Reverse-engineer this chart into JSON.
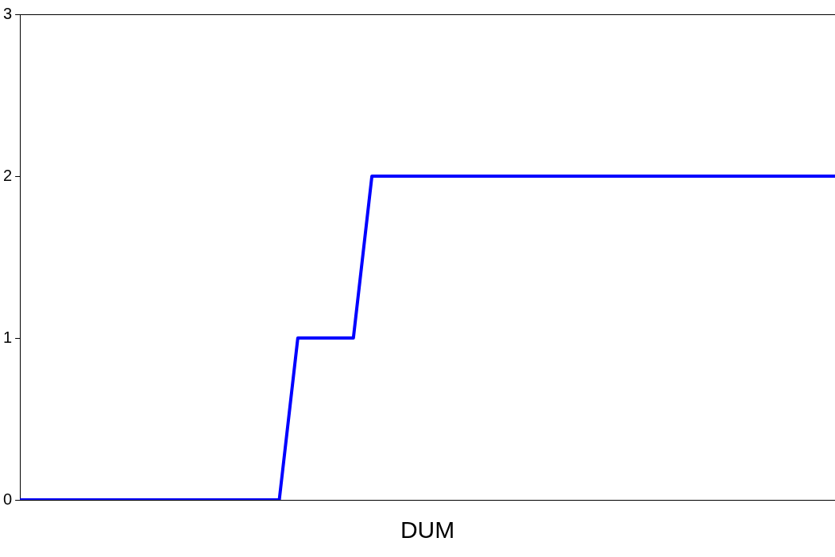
{
  "chart_data": {
    "type": "line",
    "xlabel": "DUM",
    "categories": [
      null,
      null,
      null,
      null,
      null,
      null,
      null,
      null,
      null,
      null,
      null,
      null,
      null,
      null,
      null,
      null,
      null,
      null,
      null,
      null,
      null,
      null,
      null,
      null,
      null,
      null,
      null,
      null,
      null,
      null,
      null,
      null,
      null,
      null,
      null,
      null,
      null,
      null,
      null,
      null,
      null,
      null,
      null,
      null,
      null
    ],
    "series": [
      {
        "color": "#0000ff",
        "values": [
          0,
          0,
          0,
          0,
          0,
          0,
          0,
          0,
          0,
          0,
          0,
          0,
          0,
          0,
          0,
          1,
          1,
          1,
          1,
          2,
          2,
          2,
          2,
          2,
          2,
          2,
          2,
          2,
          2,
          2,
          2,
          2,
          2,
          2,
          2,
          2,
          2,
          2,
          2,
          2,
          2,
          2,
          2,
          2,
          2
        ]
      }
    ],
    "ylim": [
      0,
      3
    ],
    "yticks": [
      0,
      1,
      2,
      3
    ],
    "grid": false,
    "legend": false,
    "marker": "none",
    "line_style": "solid"
  }
}
